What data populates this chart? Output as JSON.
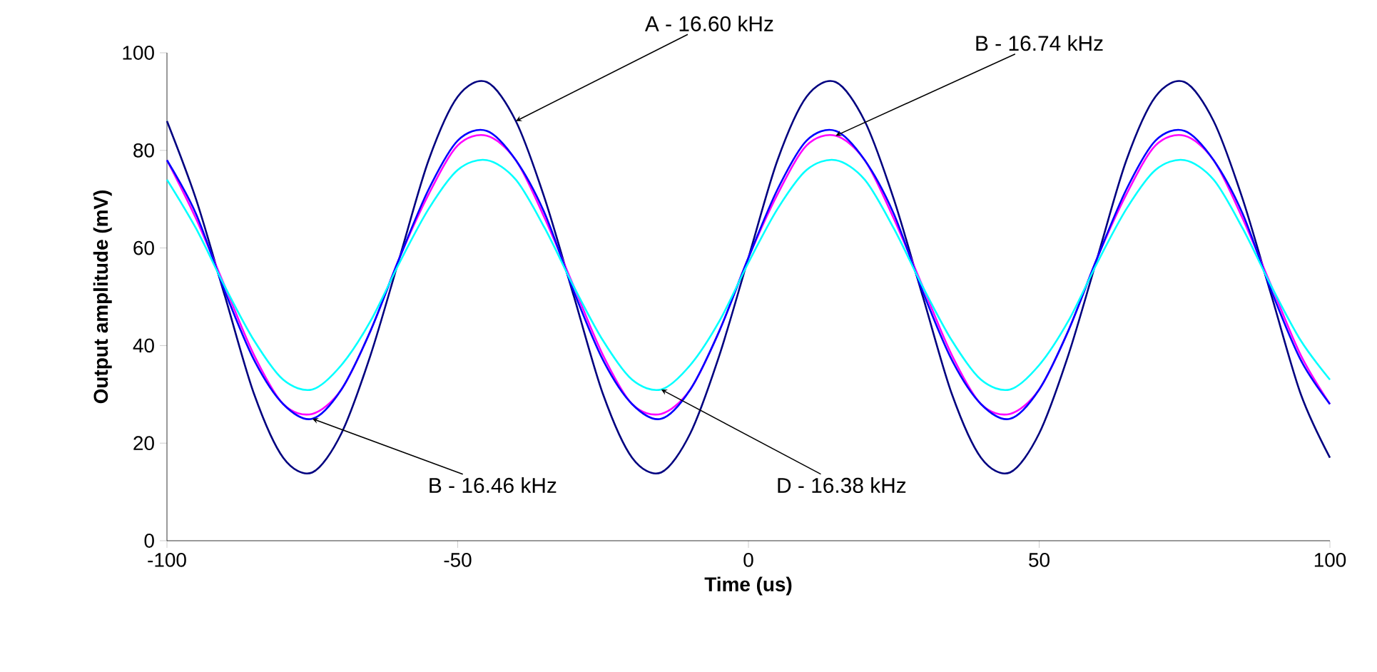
{
  "chart_data": {
    "type": "line",
    "xlabel": "Time (us)",
    "ylabel": "Output amplitude (mV)",
    "x": [
      -100,
      -95,
      -90,
      -85,
      -80,
      -75,
      -70,
      -65,
      -60,
      -55,
      -50,
      -45,
      -40,
      -35,
      -30,
      -25,
      -20,
      -15,
      -10,
      -5,
      0,
      5,
      10,
      15,
      20,
      25,
      30,
      35,
      40,
      45,
      50,
      55,
      60,
      65,
      70,
      75,
      80,
      85,
      90,
      95,
      100
    ],
    "series": [
      {
        "name": "A - 16.60 kHz",
        "color": "#000080",
        "values": [
          86,
          70,
          50,
          30,
          17,
          14,
          22,
          38,
          58,
          78,
          91,
          94,
          86,
          70,
          50,
          30,
          17,
          14,
          22,
          38,
          58,
          78,
          91,
          94,
          86,
          70,
          50,
          30,
          17,
          14,
          22,
          38,
          58,
          78,
          91,
          94,
          86,
          70,
          50,
          30,
          17
        ]
      },
      {
        "name": "B - 16.74 kHz",
        "color": "#ff00ff",
        "values": [
          78,
          66,
          52,
          38,
          28,
          26,
          31,
          43,
          58,
          71,
          81,
          83,
          78,
          66,
          52,
          38,
          28,
          26,
          31,
          43,
          58,
          71,
          81,
          83,
          78,
          66,
          52,
          38,
          28,
          26,
          31,
          43,
          58,
          71,
          81,
          83,
          78,
          66,
          52,
          38,
          28
        ]
      },
      {
        "name": "B - 16.46 kHz",
        "color": "#0000ff",
        "values": [
          78,
          67,
          51,
          37,
          28,
          25,
          31,
          43,
          58,
          72,
          82,
          84,
          78,
          67,
          51,
          37,
          28,
          25,
          31,
          43,
          58,
          72,
          82,
          84,
          78,
          67,
          51,
          37,
          28,
          25,
          31,
          43,
          58,
          72,
          82,
          84,
          78,
          67,
          51,
          37,
          28
        ]
      },
      {
        "name": "D - 16.38 kHz",
        "color": "#00ffff",
        "values": [
          74,
          64,
          52,
          41,
          33,
          31,
          36,
          45,
          57,
          68,
          76,
          78,
          74,
          64,
          52,
          41,
          33,
          31,
          36,
          45,
          57,
          68,
          76,
          78,
          74,
          64,
          52,
          41,
          33,
          31,
          36,
          45,
          57,
          68,
          76,
          78,
          74,
          64,
          52,
          41,
          33
        ]
      }
    ],
    "xlim": [
      -100,
      100
    ],
    "ylim": [
      0,
      100
    ],
    "xticks": [
      -100,
      -50,
      0,
      50,
      100
    ],
    "yticks": [
      0,
      20,
      40,
      60,
      80,
      100
    ],
    "grid": false,
    "marker": "none",
    "line_style": "solid"
  }
}
